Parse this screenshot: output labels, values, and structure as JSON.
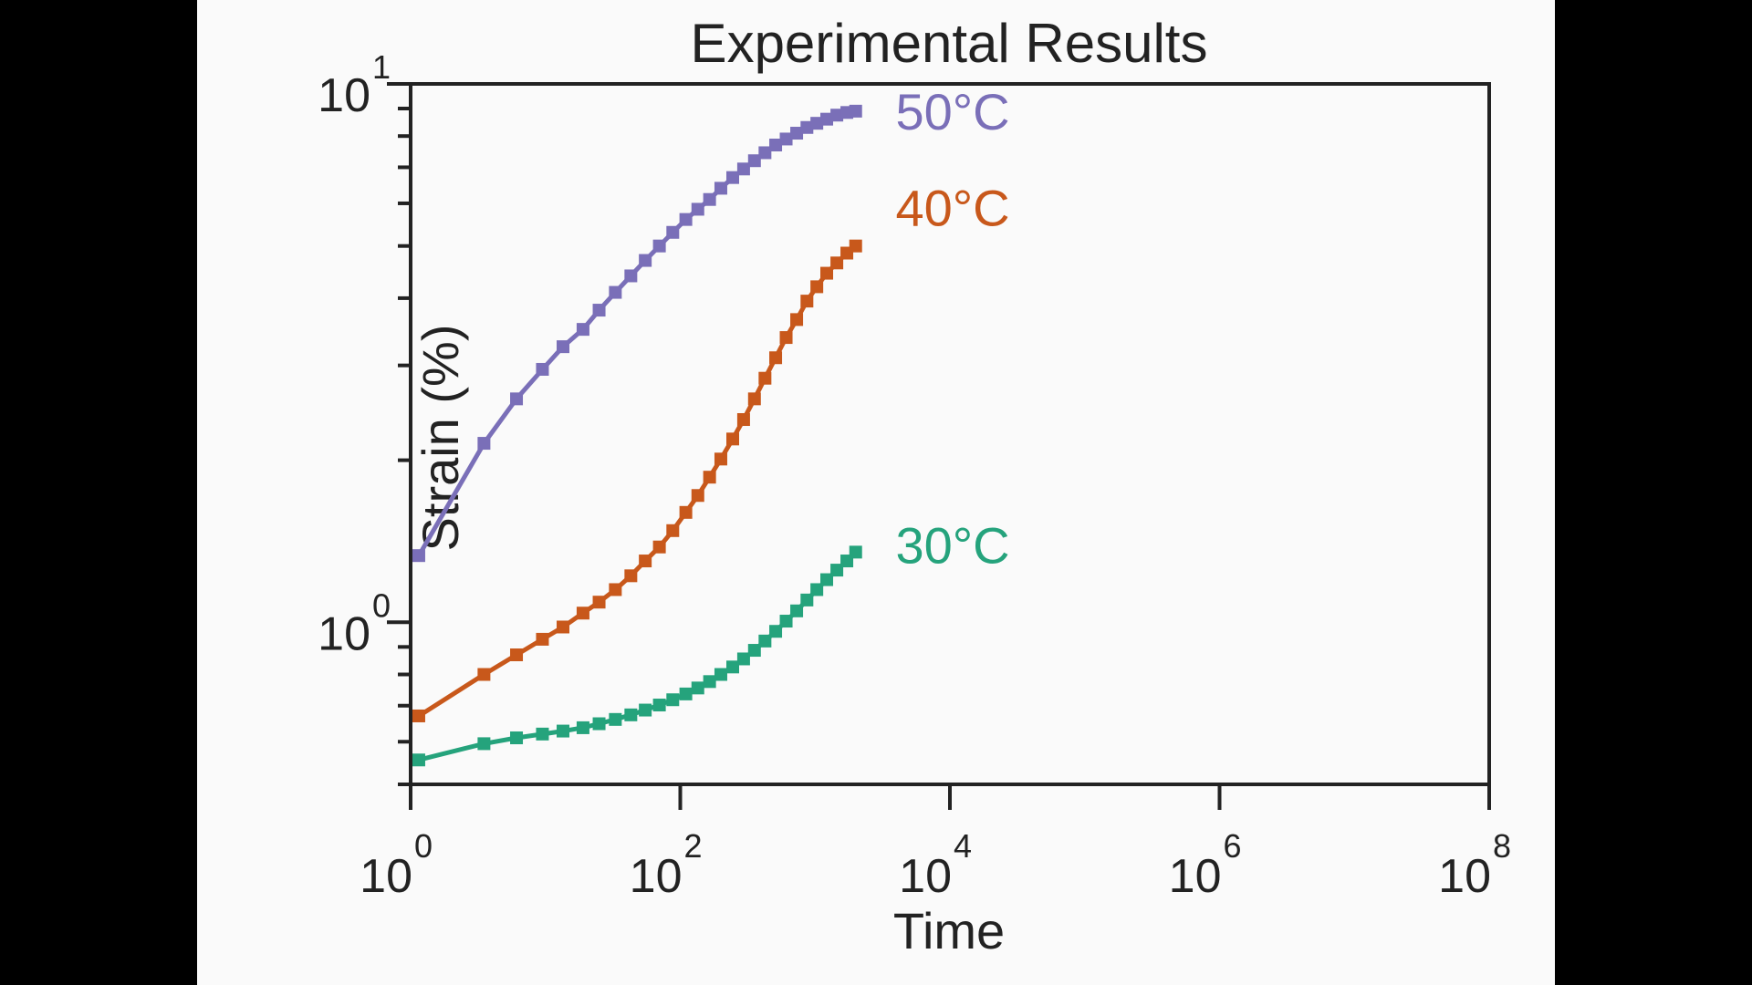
{
  "colors": {
    "frame_background": "#fafafa",
    "outer_background": "#000000",
    "axis": "#222222"
  },
  "chart_data": {
    "type": "line",
    "title": "Experimental Results",
    "xlabel": "Time",
    "ylabel": "Strain (%)",
    "xscale": "log",
    "yscale": "log",
    "xlim": [
      1,
      100000000
    ],
    "ylim": [
      0.5,
      10
    ],
    "grid": false,
    "legend": "inline labels at right end of each series",
    "marker": "square",
    "x_ticks": [
      {
        "base": "10",
        "exp": "0"
      },
      {
        "base": "10",
        "exp": "2"
      },
      {
        "base": "10",
        "exp": "4"
      },
      {
        "base": "10",
        "exp": "6"
      },
      {
        "base": "10",
        "exp": "8"
      }
    ],
    "y_ticks": [
      {
        "base": "10",
        "exp": "0"
      },
      {
        "base": "10",
        "exp": "1"
      }
    ],
    "x": [
      1.15,
      3.5,
      6.1,
      9.5,
      13.5,
      19,
      25,
      33,
      43,
      55,
      70,
      88,
      110,
      135,
      165,
      200,
      245,
      295,
      355,
      425,
      510,
      610,
      730,
      870,
      1030,
      1220,
      1450,
      1720,
      2000
    ],
    "series": [
      {
        "name": "50°C",
        "color": "#7a6fb8",
        "values": [
          1.33,
          2.15,
          2.6,
          2.95,
          3.25,
          3.5,
          3.8,
          4.1,
          4.4,
          4.7,
          5.0,
          5.3,
          5.6,
          5.85,
          6.1,
          6.4,
          6.7,
          6.95,
          7.2,
          7.45,
          7.7,
          7.9,
          8.1,
          8.3,
          8.45,
          8.6,
          8.75,
          8.85,
          8.9
        ]
      },
      {
        "name": "40°C",
        "color": "#c8581b",
        "values": [
          0.67,
          0.8,
          0.87,
          0.93,
          0.98,
          1.04,
          1.09,
          1.15,
          1.22,
          1.3,
          1.38,
          1.48,
          1.6,
          1.72,
          1.86,
          2.01,
          2.19,
          2.38,
          2.6,
          2.84,
          3.1,
          3.38,
          3.65,
          3.95,
          4.2,
          4.45,
          4.65,
          4.85,
          5.0
        ]
      },
      {
        "name": "30°C",
        "color": "#25a37c",
        "values": [
          0.555,
          0.595,
          0.61,
          0.62,
          0.628,
          0.637,
          0.648,
          0.66,
          0.673,
          0.687,
          0.702,
          0.718,
          0.736,
          0.755,
          0.776,
          0.8,
          0.826,
          0.855,
          0.887,
          0.923,
          0.962,
          1.005,
          1.05,
          1.1,
          1.15,
          1.2,
          1.25,
          1.3,
          1.35
        ]
      }
    ]
  }
}
